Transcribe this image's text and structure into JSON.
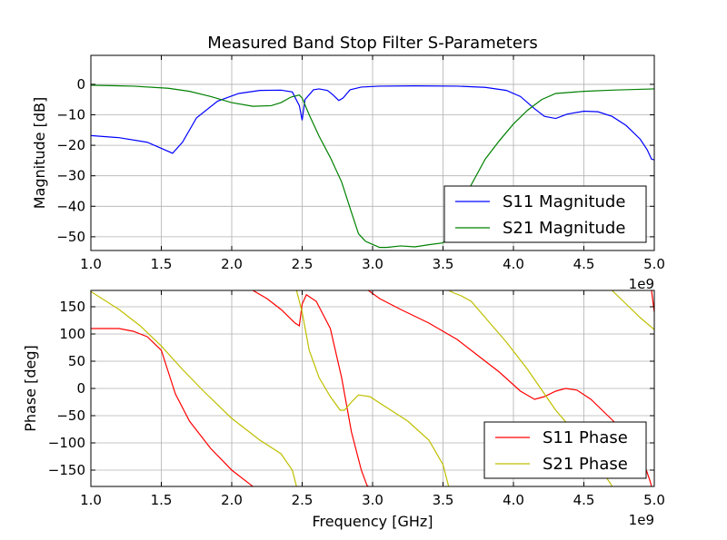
{
  "figure": {
    "title": "Measured Band Stop Filter S-Parameters",
    "xlabel": "Frequency [GHz]"
  },
  "chart_data": [
    {
      "type": "line",
      "title": "Measured Band Stop Filter S-Parameters",
      "xlabel": "",
      "ylabel": "Magnitude [dB]",
      "x_offset_label": "1e9",
      "xlim": [
        1.0,
        5.0
      ],
      "ylim": [
        -54.5,
        9.5
      ],
      "grid": true,
      "legend_position": "lower-right",
      "xticks": [
        "1.0",
        "1.5",
        "2.0",
        "2.5",
        "3.0",
        "3.5",
        "4.0",
        "4.5",
        "5.0"
      ],
      "yticks": [
        "0",
        "−10",
        "−20",
        "−30",
        "−40",
        "−50"
      ],
      "ytick_values": [
        0,
        -10,
        -20,
        -30,
        -40,
        -50
      ],
      "series": [
        {
          "name": "S11 Magnitude",
          "color": "#0000ff",
          "x": [
            1.0,
            1.2,
            1.4,
            1.5,
            1.58,
            1.65,
            1.75,
            1.9,
            2.05,
            2.2,
            2.35,
            2.43,
            2.48,
            2.5,
            2.52,
            2.58,
            2.62,
            2.68,
            2.72,
            2.76,
            2.79,
            2.84,
            2.92,
            3.05,
            3.3,
            3.6,
            3.8,
            3.95,
            4.05,
            4.15,
            4.22,
            4.3,
            4.38,
            4.5,
            4.6,
            4.7,
            4.8,
            4.9,
            4.95,
            4.98,
            5.0
          ],
          "y": [
            -16.8,
            -17.5,
            -19.0,
            -21.0,
            -22.6,
            -19.0,
            -11.0,
            -5.5,
            -3.0,
            -2.0,
            -1.9,
            -2.5,
            -7.0,
            -11.8,
            -5.0,
            -1.8,
            -1.5,
            -2.0,
            -3.5,
            -5.3,
            -4.5,
            -1.8,
            -0.9,
            -0.6,
            -0.5,
            -0.6,
            -1.0,
            -2.0,
            -4.0,
            -8.0,
            -10.5,
            -11.2,
            -9.8,
            -8.8,
            -9.0,
            -10.5,
            -13.5,
            -18.0,
            -21.5,
            -24.5,
            -24.8
          ]
        },
        {
          "name": "S21 Magnitude",
          "color": "#008000",
          "x": [
            1.0,
            1.3,
            1.55,
            1.7,
            1.85,
            2.0,
            2.15,
            2.28,
            2.35,
            2.42,
            2.48,
            2.5,
            2.55,
            2.62,
            2.7,
            2.78,
            2.85,
            2.9,
            2.95,
            3.0,
            3.05,
            3.1,
            3.2,
            3.3,
            3.4,
            3.5,
            3.55,
            3.6,
            3.65,
            3.7,
            3.8,
            3.9,
            4.0,
            4.1,
            4.2,
            4.3,
            4.5,
            4.7,
            5.0
          ],
          "y": [
            -0.3,
            -0.6,
            -1.3,
            -2.3,
            -4.0,
            -6.0,
            -7.2,
            -7.0,
            -6.0,
            -4.2,
            -3.5,
            -4.5,
            -10.0,
            -17.0,
            -24.0,
            -32.0,
            -42.0,
            -49.0,
            -51.5,
            -52.5,
            -53.5,
            -53.5,
            -53.0,
            -53.3,
            -52.6,
            -52.0,
            -49.0,
            -44.5,
            -38.5,
            -33.0,
            -24.5,
            -18.5,
            -13.0,
            -8.5,
            -5.0,
            -3.0,
            -2.3,
            -1.9,
            -1.5
          ]
        }
      ]
    },
    {
      "type": "line",
      "title": "",
      "xlabel": "Frequency [GHz]",
      "ylabel": "Phase [deg]",
      "x_offset_label": "1e9",
      "xlim": [
        1.0,
        5.0
      ],
      "ylim": [
        -180,
        180
      ],
      "grid": true,
      "legend_position": "lower-right",
      "xticks": [
        "1.0",
        "1.5",
        "2.0",
        "2.5",
        "3.0",
        "3.5",
        "4.0",
        "4.5",
        "5.0"
      ],
      "yticks": [
        "150",
        "100",
        "50",
        "0",
        "−50",
        "−100",
        "−150"
      ],
      "ytick_values": [
        150,
        100,
        50,
        0,
        -50,
        -100,
        -150
      ],
      "series": [
        {
          "name": "S11 Phase",
          "color": "#ff0000",
          "x": [
            1.0,
            1.2,
            1.3,
            1.4,
            1.5,
            1.55,
            1.6,
            1.7,
            1.85,
            2.0,
            2.14,
            2.15,
            2.15,
            2.25,
            2.35,
            2.45,
            2.48,
            2.5,
            2.53,
            2.6,
            2.7,
            2.78,
            2.85,
            2.92,
            2.96,
            2.97,
            2.97,
            3.05,
            3.2,
            3.4,
            3.6,
            3.75,
            3.9,
            4.05,
            4.15,
            4.22,
            4.3,
            4.37,
            4.45,
            4.55,
            4.65,
            4.75,
            4.85,
            4.93,
            4.97,
            4.98,
            4.98,
            5.0
          ],
          "y": [
            110,
            110,
            105,
            95,
            70,
            30,
            -10,
            -60,
            -110,
            -150,
            -178,
            -180,
            180,
            165,
            145,
            120,
            115,
            155,
            172,
            160,
            110,
            20,
            -80,
            -150,
            -178,
            -180,
            180,
            165,
            145,
            120,
            90,
            60,
            30,
            -5,
            -20,
            -15,
            -5,
            0,
            -3,
            -20,
            -45,
            -70,
            -100,
            -140,
            -170,
            -180,
            180,
            140
          ]
        },
        {
          "name": "S21 Phase",
          "color": "#bfbf00",
          "x": [
            1.0,
            1.2,
            1.35,
            1.5,
            1.65,
            1.8,
            2.0,
            2.2,
            2.35,
            2.43,
            2.45,
            2.46,
            2.46,
            2.5,
            2.55,
            2.62,
            2.7,
            2.77,
            2.8,
            2.85,
            2.9,
            2.98,
            3.1,
            3.25,
            3.4,
            3.5,
            3.53,
            3.54,
            3.54,
            3.58,
            3.63,
            3.7,
            3.8,
            3.95,
            4.1,
            4.3,
            4.5,
            4.65,
            4.69,
            4.7,
            4.7,
            4.8,
            4.9,
            5.0
          ],
          "y": [
            178,
            145,
            115,
            78,
            35,
            -5,
            -55,
            -95,
            -120,
            -150,
            -170,
            -180,
            180,
            140,
            70,
            20,
            -15,
            -40,
            -40,
            -25,
            -12,
            -15,
            -35,
            -60,
            -95,
            -140,
            -170,
            -180,
            180,
            175,
            170,
            160,
            130,
            85,
            35,
            -40,
            -100,
            -160,
            -175,
            -180,
            180,
            155,
            130,
            108
          ]
        }
      ]
    }
  ]
}
